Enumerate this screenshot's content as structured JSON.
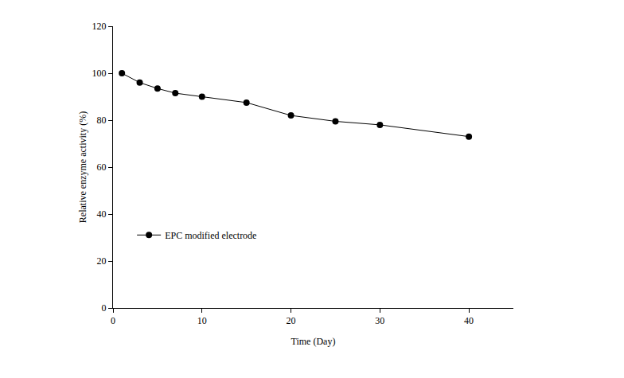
{
  "chart_data": {
    "type": "line",
    "x_label": "Time (Day)",
    "y_label": "Relative enzyme activity (%)",
    "series": [
      {
        "name": "EPC modified electrode",
        "color": "#000000",
        "marker": "circle",
        "line_style": "solid",
        "x": [
          1,
          3,
          5,
          7,
          10,
          15,
          20,
          25,
          30,
          40
        ],
        "values": [
          100,
          96,
          93.5,
          91.5,
          90,
          87.5,
          82,
          79.5,
          78,
          73
        ]
      }
    ],
    "xlim": [
      0,
      45
    ],
    "xticks": [
      0,
      10,
      20,
      30,
      40
    ],
    "ylim": [
      0,
      120
    ],
    "yticks": [
      0,
      20,
      40,
      60,
      80,
      100,
      120
    ],
    "grid": false,
    "legend": "lower left"
  }
}
